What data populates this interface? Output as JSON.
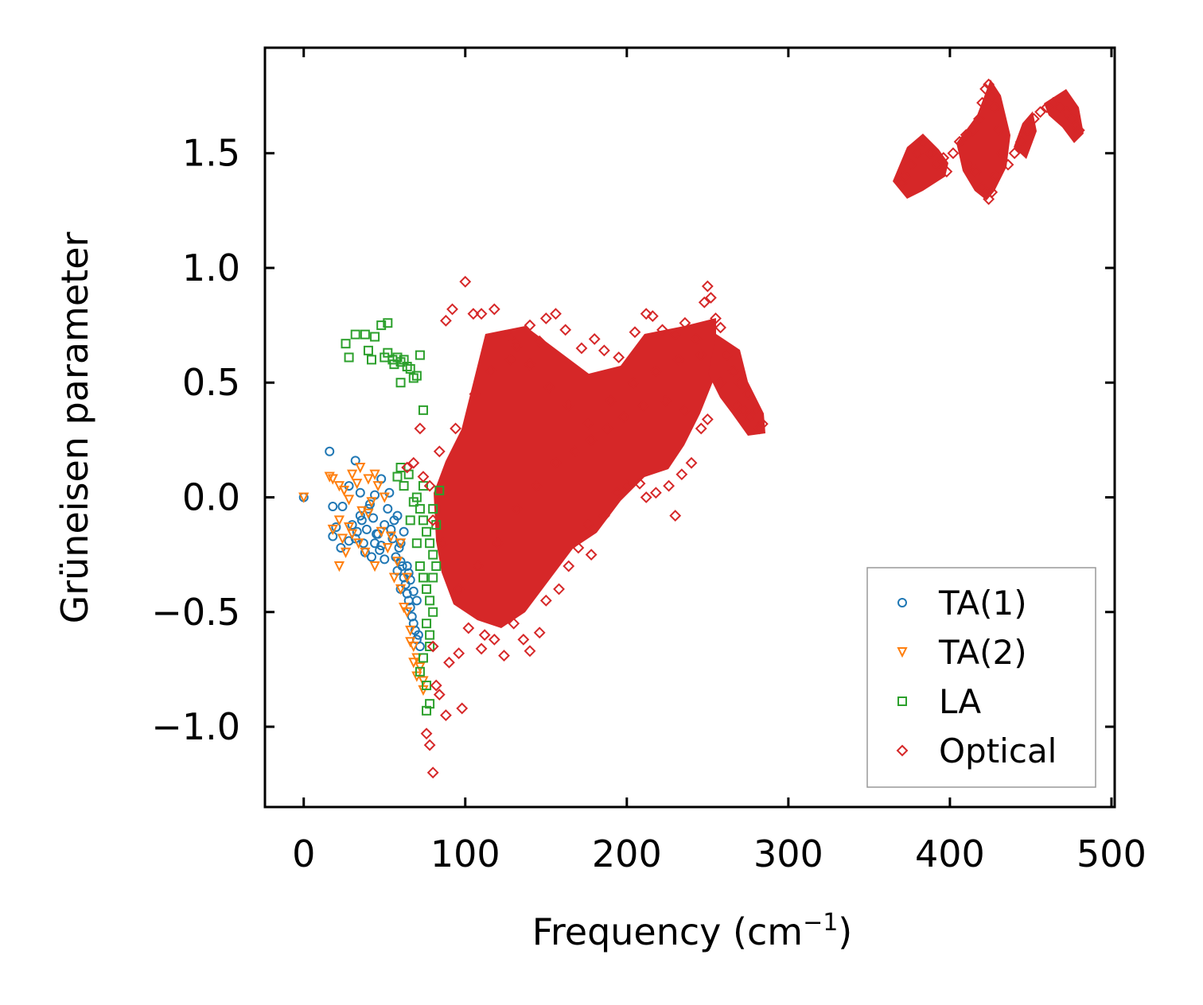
{
  "chart_data": {
    "type": "scatter",
    "title": "",
    "xlabel": "Frequency (cm",
    "xlabel_sup": "−1",
    "xlabel_close": ")",
    "ylabel": "Grüneisen parameter",
    "xlim": [
      -24,
      502
    ],
    "ylim": [
      -1.35,
      1.96
    ],
    "xticks": [
      0,
      100,
      200,
      300,
      400,
      500
    ],
    "xtick_labels": [
      "0",
      "100",
      "200",
      "300",
      "400",
      "500"
    ],
    "yticks": [
      -1.0,
      -0.5,
      0.0,
      0.5,
      1.0,
      1.5
    ],
    "ytick_labels": [
      "−1.0",
      "−0.5",
      "0.0",
      "0.5",
      "1.0",
      "1.5"
    ],
    "legend_position": "lower-right",
    "series": [
      {
        "name": "TA(1)",
        "marker": "circle",
        "color": "#1f77b4",
        "points": [
          [
            0,
            0
          ],
          [
            16,
            0.2
          ],
          [
            32,
            0.16
          ],
          [
            18,
            -0.04
          ],
          [
            24,
            -0.04
          ],
          [
            28,
            0.05
          ],
          [
            35,
            0.02
          ],
          [
            30,
            -0.12
          ],
          [
            40,
            -0.05
          ],
          [
            44,
            0.01
          ],
          [
            48,
            0.08
          ],
          [
            18,
            -0.17
          ],
          [
            20,
            -0.13
          ],
          [
            23,
            -0.22
          ],
          [
            28,
            -0.19
          ],
          [
            32,
            -0.18
          ],
          [
            36,
            -0.1
          ],
          [
            38,
            -0.24
          ],
          [
            42,
            -0.26
          ],
          [
            44,
            -0.2
          ],
          [
            46,
            -0.16
          ],
          [
            50,
            -0.12
          ],
          [
            52,
            -0.05
          ],
          [
            53,
            0.02
          ],
          [
            55,
            -0.18
          ],
          [
            56,
            -0.1
          ],
          [
            58,
            -0.08
          ],
          [
            59,
            -0.22
          ],
          [
            60,
            -0.28
          ],
          [
            61,
            -0.3
          ],
          [
            62,
            -0.35
          ],
          [
            63,
            -0.38
          ],
          [
            64,
            -0.42
          ],
          [
            65,
            -0.45
          ],
          [
            66,
            -0.48
          ],
          [
            67,
            -0.52
          ],
          [
            68,
            -0.55
          ],
          [
            69,
            -0.58
          ],
          [
            70,
            -0.62
          ],
          [
            71,
            -0.6
          ],
          [
            72,
            -0.65
          ],
          [
            48,
            -0.21
          ],
          [
            54,
            -0.14
          ],
          [
            57,
            -0.26
          ],
          [
            60,
            -0.2
          ],
          [
            62,
            -0.15
          ],
          [
            64,
            -0.3
          ],
          [
            66,
            -0.36
          ],
          [
            68,
            -0.41
          ],
          [
            70,
            -0.45
          ],
          [
            50,
            -0.27
          ],
          [
            47,
            -0.23
          ],
          [
            45,
            -0.16
          ],
          [
            43,
            -0.09
          ],
          [
            41,
            -0.03
          ],
          [
            39,
            -0.14
          ],
          [
            37,
            -0.2
          ],
          [
            35,
            -0.08
          ],
          [
            33,
            -0.15
          ],
          [
            60,
            -0.4
          ],
          [
            65,
            -0.33
          ],
          [
            58,
            -0.32
          ]
        ]
      },
      {
        "name": "TA(2)",
        "marker": "triangle-down",
        "color": "#ff7f0e",
        "points": [
          [
            0,
            0
          ],
          [
            16,
            0.09
          ],
          [
            18,
            0.08
          ],
          [
            22,
            0.05
          ],
          [
            25,
            0.03
          ],
          [
            28,
            -0.01
          ],
          [
            30,
            0.1
          ],
          [
            35,
            0.13
          ],
          [
            40,
            0.08
          ],
          [
            44,
            0.1
          ],
          [
            46,
            0.05
          ],
          [
            50,
            0.0
          ],
          [
            18,
            -0.14
          ],
          [
            22,
            -0.1
          ],
          [
            24,
            -0.18
          ],
          [
            26,
            -0.24
          ],
          [
            22,
            -0.3
          ],
          [
            28,
            -0.13
          ],
          [
            30,
            -0.16
          ],
          [
            34,
            -0.2
          ],
          [
            38,
            -0.24
          ],
          [
            44,
            -0.3
          ],
          [
            52,
            -0.22
          ],
          [
            56,
            -0.35
          ],
          [
            60,
            -0.4
          ],
          [
            64,
            -0.5
          ],
          [
            66,
            -0.58
          ],
          [
            68,
            -0.65
          ],
          [
            70,
            -0.7
          ],
          [
            72,
            -0.74
          ],
          [
            74,
            -0.8
          ],
          [
            74,
            -0.84
          ],
          [
            70,
            -0.78
          ],
          [
            68,
            -0.72
          ],
          [
            66,
            -0.63
          ],
          [
            62,
            -0.48
          ],
          [
            58,
            -0.28
          ],
          [
            54,
            -0.17
          ],
          [
            40,
            -0.07
          ],
          [
            48,
            -0.15
          ],
          [
            60,
            -0.2
          ],
          [
            64,
            -0.35
          ],
          [
            42,
            -0.02
          ],
          [
            36,
            -0.06
          ],
          [
            33,
            0.06
          ]
        ]
      },
      {
        "name": "LA",
        "marker": "square",
        "color": "#2ca02c",
        "points": [
          [
            26,
            0.67
          ],
          [
            28,
            0.61
          ],
          [
            32,
            0.71
          ],
          [
            38,
            0.71
          ],
          [
            40,
            0.64
          ],
          [
            42,
            0.6
          ],
          [
            44,
            0.7
          ],
          [
            48,
            0.75
          ],
          [
            52,
            0.76
          ],
          [
            50,
            0.61
          ],
          [
            52,
            0.63
          ],
          [
            55,
            0.6
          ],
          [
            56,
            0.58
          ],
          [
            58,
            0.61
          ],
          [
            60,
            0.59
          ],
          [
            62,
            0.6
          ],
          [
            64,
            0.57
          ],
          [
            66,
            0.56
          ],
          [
            68,
            0.52
          ],
          [
            70,
            0.53
          ],
          [
            72,
            0.62
          ],
          [
            60,
            0.5
          ],
          [
            74,
            0.38
          ],
          [
            58,
            0.09
          ],
          [
            60,
            0.13
          ],
          [
            62,
            0.05
          ],
          [
            65,
            0.1
          ],
          [
            70,
            0.0
          ],
          [
            72,
            -0.05
          ],
          [
            74,
            -0.1
          ],
          [
            76,
            -0.15
          ],
          [
            78,
            -0.2
          ],
          [
            80,
            -0.25
          ],
          [
            82,
            -0.3
          ],
          [
            74,
            -0.35
          ],
          [
            76,
            -0.4
          ],
          [
            78,
            -0.45
          ],
          [
            80,
            -0.5
          ],
          [
            76,
            -0.55
          ],
          [
            78,
            -0.6
          ],
          [
            74,
            -0.7
          ],
          [
            72,
            -0.76
          ],
          [
            76,
            -0.82
          ],
          [
            78,
            -0.9
          ],
          [
            76,
            -0.93
          ],
          [
            84,
            0.03
          ],
          [
            80,
            -0.05
          ],
          [
            82,
            -0.12
          ],
          [
            70,
            -0.2
          ],
          [
            72,
            -0.3
          ],
          [
            66,
            -0.1
          ],
          [
            68,
            -0.02
          ],
          [
            74,
            0.05
          ],
          [
            78,
            -0.65
          ],
          [
            80,
            -0.35
          ]
        ]
      },
      {
        "name": "Optical",
        "marker": "diamond",
        "color": "#d62728",
        "points": [
          [
            100,
            0.94
          ],
          [
            88,
            0.77
          ],
          [
            92,
            0.82
          ],
          [
            105,
            0.8
          ],
          [
            110,
            0.8
          ],
          [
            118,
            0.82
          ],
          [
            128,
            0.7
          ],
          [
            132,
            0.66
          ],
          [
            140,
            0.75
          ],
          [
            146,
            0.68
          ],
          [
            150,
            0.78
          ],
          [
            156,
            0.8
          ],
          [
            162,
            0.73
          ],
          [
            172,
            0.65
          ],
          [
            180,
            0.69
          ],
          [
            186,
            0.64
          ],
          [
            195,
            0.61
          ],
          [
            205,
            0.72
          ],
          [
            212,
            0.8
          ],
          [
            216,
            0.79
          ],
          [
            222,
            0.73
          ],
          [
            230,
            0.71
          ],
          [
            236,
            0.76
          ],
          [
            243,
            0.69
          ],
          [
            250,
            0.92
          ],
          [
            252,
            0.87
          ],
          [
            248,
            0.85
          ],
          [
            255,
            0.78
          ],
          [
            258,
            0.74
          ],
          [
            262,
            0.62
          ],
          [
            266,
            0.55
          ],
          [
            270,
            0.5
          ],
          [
            275,
            0.45
          ],
          [
            280,
            0.38
          ],
          [
            284,
            0.32
          ],
          [
            282,
            0.3
          ],
          [
            276,
            0.35
          ],
          [
            72,
            0.3
          ],
          [
            74,
            0.09
          ],
          [
            68,
            0.15
          ],
          [
            64,
            0.13
          ],
          [
            80,
            -0.65
          ],
          [
            82,
            -0.82
          ],
          [
            84,
            -0.86
          ],
          [
            88,
            -0.95
          ],
          [
            90,
            -0.72
          ],
          [
            96,
            -0.68
          ],
          [
            98,
            -0.92
          ],
          [
            76,
            -1.03
          ],
          [
            78,
            -1.08
          ],
          [
            80,
            -1.2
          ],
          [
            102,
            -0.57
          ],
          [
            110,
            -0.66
          ],
          [
            112,
            -0.6
          ],
          [
            118,
            -0.62
          ],
          [
            124,
            -0.69
          ],
          [
            130,
            -0.55
          ],
          [
            136,
            -0.62
          ],
          [
            140,
            -0.67
          ],
          [
            146,
            -0.59
          ],
          [
            150,
            -0.45
          ],
          [
            158,
            -0.4
          ],
          [
            164,
            -0.3
          ],
          [
            170,
            -0.22
          ],
          [
            178,
            -0.25
          ],
          [
            176,
            -0.12
          ],
          [
            186,
            -0.08
          ],
          [
            194,
            0.02
          ],
          [
            200,
            0.05
          ],
          [
            208,
            0.06
          ],
          [
            212,
            0.0
          ],
          [
            218,
            0.02
          ],
          [
            226,
            0.05
          ],
          [
            230,
            -0.08
          ],
          [
            234,
            0.1
          ],
          [
            240,
            0.15
          ],
          [
            246,
            0.3
          ],
          [
            250,
            0.34
          ],
          [
            236,
            0.38
          ],
          [
            224,
            0.42
          ],
          [
            210,
            0.4
          ],
          [
            198,
            0.35
          ],
          [
            188,
            0.3
          ],
          [
            178,
            0.25
          ],
          [
            168,
            0.2
          ],
          [
            156,
            0.15
          ],
          [
            144,
            0.05
          ],
          [
            132,
            -0.05
          ],
          [
            120,
            -0.2
          ],
          [
            108,
            -0.3
          ],
          [
            96,
            -0.4
          ],
          [
            86,
            -0.2
          ],
          [
            80,
            -0.1
          ],
          [
            78,
            0.05
          ],
          [
            84,
            0.2
          ],
          [
            94,
            0.3
          ],
          [
            106,
            0.45
          ],
          [
            116,
            0.55
          ],
          [
            128,
            0.6
          ],
          [
            140,
            0.58
          ],
          [
            152,
            0.48
          ],
          [
            164,
            0.4
          ],
          [
            176,
            0.32
          ],
          [
            190,
            0.42
          ],
          [
            204,
            0.5
          ],
          [
            218,
            0.55
          ],
          [
            232,
            0.6
          ],
          [
            246,
            0.62
          ],
          [
            258,
            0.5
          ],
          [
            268,
            0.4
          ],
          [
            272,
            0.38
          ],
          [
            370,
            1.37
          ],
          [
            372,
            1.4
          ],
          [
            376,
            1.45
          ],
          [
            380,
            1.5
          ],
          [
            384,
            1.55
          ],
          [
            388,
            1.5
          ],
          [
            392,
            1.45
          ],
          [
            396,
            1.48
          ],
          [
            398,
            1.42
          ],
          [
            402,
            1.5
          ],
          [
            406,
            1.55
          ],
          [
            410,
            1.58
          ],
          [
            414,
            1.6
          ],
          [
            418,
            1.65
          ],
          [
            420,
            1.72
          ],
          [
            422,
            1.78
          ],
          [
            424,
            1.8
          ],
          [
            426,
            1.75
          ],
          [
            428,
            1.7
          ],
          [
            430,
            1.6
          ],
          [
            432,
            1.5
          ],
          [
            428,
            1.4
          ],
          [
            426,
            1.33
          ],
          [
            424,
            1.3
          ],
          [
            420,
            1.35
          ],
          [
            416,
            1.42
          ],
          [
            412,
            1.45
          ],
          [
            436,
            1.45
          ],
          [
            440,
            1.5
          ],
          [
            444,
            1.55
          ],
          [
            448,
            1.6
          ],
          [
            452,
            1.65
          ],
          [
            456,
            1.68
          ],
          [
            460,
            1.7
          ],
          [
            464,
            1.72
          ],
          [
            468,
            1.7
          ],
          [
            472,
            1.68
          ],
          [
            476,
            1.65
          ],
          [
            478,
            1.62
          ],
          [
            480,
            1.6
          ]
        ]
      }
    ]
  }
}
